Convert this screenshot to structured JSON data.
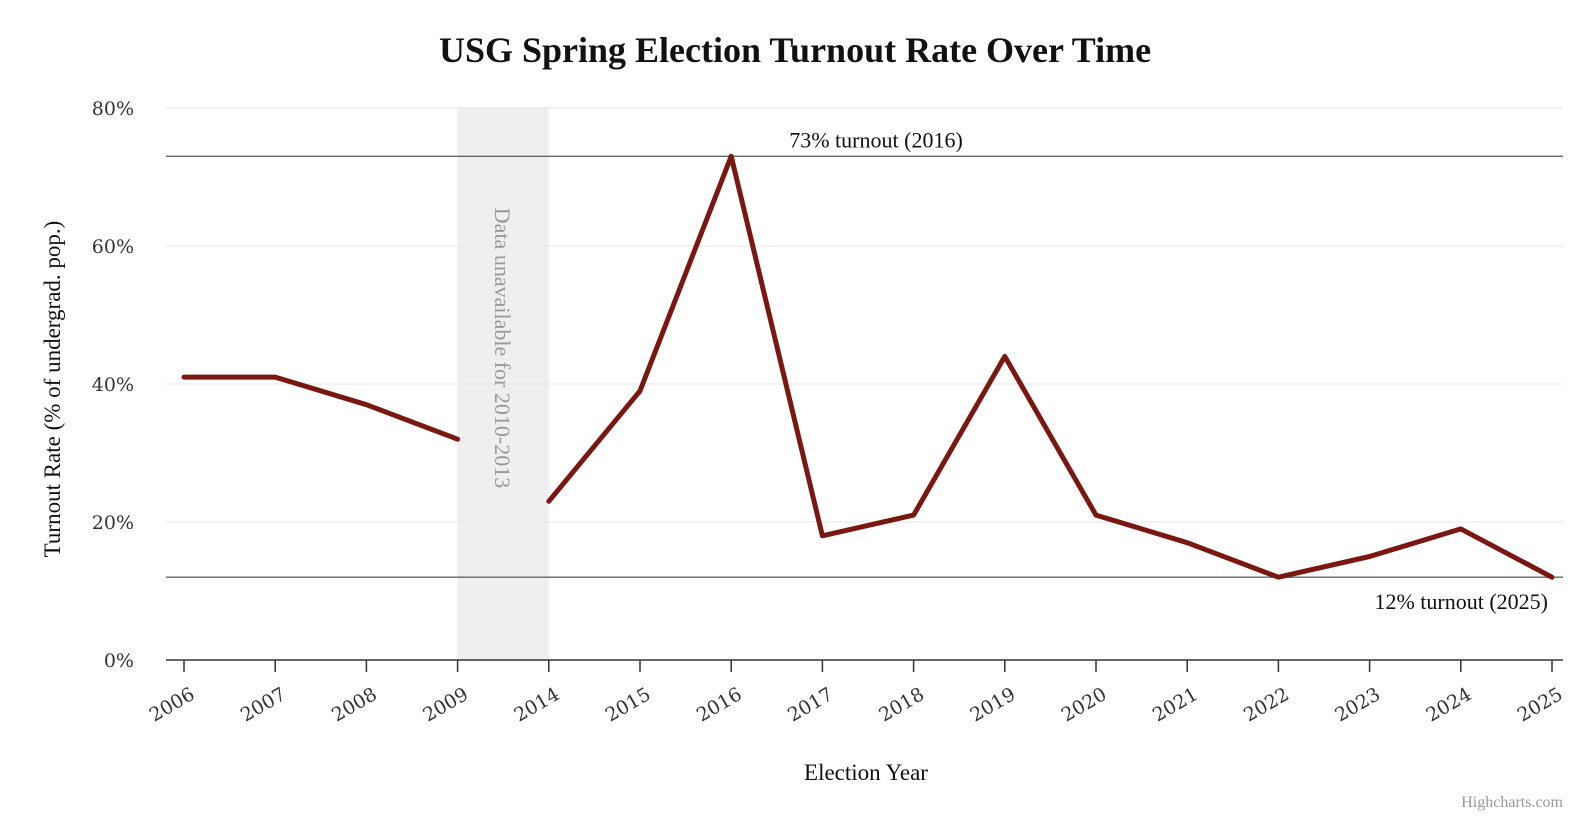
{
  "chart_data": {
    "type": "line",
    "title": "USG Spring Election Turnout Rate Over Time",
    "xlabel": "Election Year",
    "ylabel": "Turnout Rate (% of undergrad. pop.)",
    "categories": [
      "2006",
      "2007",
      "2008",
      "2009",
      "2014",
      "2015",
      "2016",
      "2017",
      "2018",
      "2019",
      "2020",
      "2021",
      "2022",
      "2023",
      "2024",
      "2025"
    ],
    "series": [
      {
        "color": "#7a1710",
        "values": [
          41,
          41,
          37,
          32,
          null,
          39,
          73,
          18,
          21,
          44,
          21,
          17,
          12,
          15,
          19,
          12
        ],
        "segment_break_note": "the 2014 value (23) begins a new segment after the gap",
        "values_full": [
          41,
          41,
          37,
          32,
          23,
          39,
          73,
          18,
          21,
          44,
          21,
          17,
          12,
          15,
          19,
          12
        ],
        "break_before": [
          "2014"
        ]
      }
    ],
    "ylim": [
      0,
      80
    ],
    "yticks": [
      "0%",
      "20%",
      "40%",
      "60%",
      "80%"
    ],
    "ytick_values": [
      0,
      20,
      40,
      60,
      80
    ],
    "grid": true,
    "plot_bands": [
      {
        "from": "2009",
        "to": "2014",
        "label": "Data unavailable for 2010-2013",
        "color": "#efefef"
      }
    ],
    "plot_lines": [
      {
        "value": 73,
        "label": "73% turnout (2016)",
        "color": "#666666"
      },
      {
        "value": 12,
        "label": "12% turnout (2025)",
        "color": "#666666"
      }
    ],
    "credits": "Highcharts.com"
  }
}
